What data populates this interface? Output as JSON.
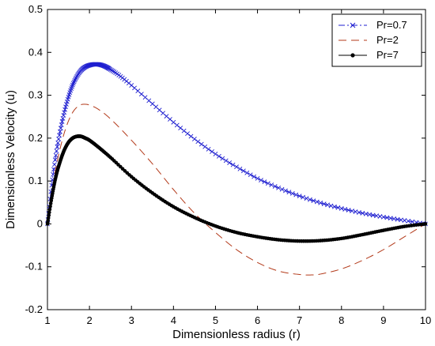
{
  "chart_data": {
    "type": "line",
    "title": "",
    "xlabel": "Dimensionless radius (r)",
    "ylabel": "Dimensionless Velocity (u)",
    "xlim": [
      1,
      10
    ],
    "ylim": [
      -0.2,
      0.5
    ],
    "xticks": [
      "1",
      "2",
      "3",
      "4",
      "5",
      "6",
      "7",
      "8",
      "9",
      "10"
    ],
    "yticks": [
      "-0.2",
      "-0.1",
      "0",
      "0.1",
      "0.2",
      "0.3",
      "0.4",
      "0.5"
    ],
    "grid": false,
    "legend_position": "top-right",
    "series": [
      {
        "name": "Pr=0.7",
        "color": "#1f1fd0",
        "line_style": "dash-dot",
        "marker": "x",
        "points": [
          [
            1.0,
            0.0
          ],
          [
            1.1,
            0.09
          ],
          [
            1.2,
            0.16
          ],
          [
            1.3,
            0.215
          ],
          [
            1.4,
            0.26
          ],
          [
            1.5,
            0.296
          ],
          [
            1.6,
            0.324
          ],
          [
            1.7,
            0.344
          ],
          [
            1.8,
            0.358
          ],
          [
            1.9,
            0.366
          ],
          [
            2.0,
            0.37
          ],
          [
            2.1,
            0.372
          ],
          [
            2.2,
            0.372
          ],
          [
            2.3,
            0.37
          ],
          [
            2.4,
            0.366
          ],
          [
            2.5,
            0.36
          ],
          [
            2.7,
            0.347
          ],
          [
            3.0,
            0.323
          ],
          [
            3.5,
            0.28
          ],
          [
            4.0,
            0.237
          ],
          [
            4.5,
            0.198
          ],
          [
            5.0,
            0.163
          ],
          [
            5.5,
            0.133
          ],
          [
            6.0,
            0.106
          ],
          [
            6.5,
            0.084
          ],
          [
            7.0,
            0.065
          ],
          [
            7.5,
            0.049
          ],
          [
            8.0,
            0.036
          ],
          [
            8.5,
            0.025
          ],
          [
            9.0,
            0.016
          ],
          [
            9.5,
            0.008
          ],
          [
            10.0,
            0.0
          ]
        ]
      },
      {
        "name": "Pr=2",
        "color": "#b33a1a",
        "line_style": "dashed",
        "marker": "none",
        "points": [
          [
            1.0,
            0.0
          ],
          [
            1.1,
            0.07
          ],
          [
            1.2,
            0.13
          ],
          [
            1.3,
            0.175
          ],
          [
            1.4,
            0.212
          ],
          [
            1.5,
            0.24
          ],
          [
            1.6,
            0.26
          ],
          [
            1.7,
            0.272
          ],
          [
            1.8,
            0.278
          ],
          [
            1.9,
            0.279
          ],
          [
            2.0,
            0.277
          ],
          [
            2.2,
            0.268
          ],
          [
            2.5,
            0.245
          ],
          [
            3.0,
            0.195
          ],
          [
            3.5,
            0.14
          ],
          [
            4.0,
            0.08
          ],
          [
            4.5,
            0.025
          ],
          [
            5.0,
            -0.02
          ],
          [
            5.5,
            -0.06
          ],
          [
            6.0,
            -0.09
          ],
          [
            6.5,
            -0.11
          ],
          [
            7.0,
            -0.118
          ],
          [
            7.3,
            -0.119
          ],
          [
            7.5,
            -0.117
          ],
          [
            8.0,
            -0.105
          ],
          [
            8.5,
            -0.085
          ],
          [
            9.0,
            -0.06
          ],
          [
            9.5,
            -0.03
          ],
          [
            10.0,
            0.0
          ]
        ]
      },
      {
        "name": "Pr=7",
        "color": "#000000",
        "line_style": "solid",
        "marker": "dot",
        "points": [
          [
            1.0,
            0.0
          ],
          [
            1.1,
            0.06
          ],
          [
            1.2,
            0.11
          ],
          [
            1.3,
            0.145
          ],
          [
            1.4,
            0.172
          ],
          [
            1.5,
            0.19
          ],
          [
            1.6,
            0.2
          ],
          [
            1.7,
            0.204
          ],
          [
            1.8,
            0.204
          ],
          [
            1.9,
            0.2
          ],
          [
            2.0,
            0.195
          ],
          [
            2.2,
            0.18
          ],
          [
            2.5,
            0.155
          ],
          [
            3.0,
            0.11
          ],
          [
            3.5,
            0.072
          ],
          [
            4.0,
            0.04
          ],
          [
            4.5,
            0.015
          ],
          [
            5.0,
            -0.005
          ],
          [
            5.5,
            -0.02
          ],
          [
            6.0,
            -0.03
          ],
          [
            6.5,
            -0.037
          ],
          [
            7.0,
            -0.04
          ],
          [
            7.5,
            -0.039
          ],
          [
            8.0,
            -0.034
          ],
          [
            8.5,
            -0.025
          ],
          [
            9.0,
            -0.015
          ],
          [
            9.5,
            -0.006
          ],
          [
            10.0,
            0.0
          ]
        ]
      }
    ]
  }
}
